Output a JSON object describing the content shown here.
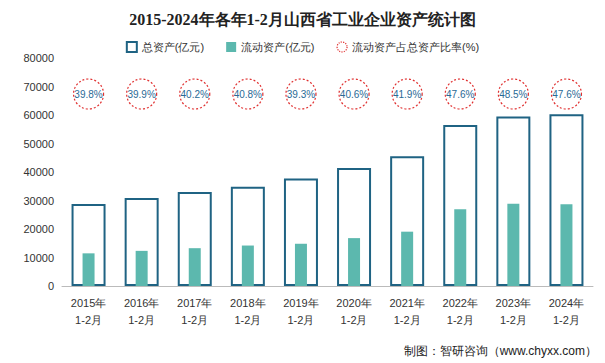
{
  "chart_data": {
    "type": "bar",
    "title": "2015-2024年各年1-2月山西省工业企业资产统计图",
    "source": "制图：智研咨询（www.chyxx.com）",
    "categories": [
      "2015年\n1-2月",
      "2016年\n1-2月",
      "2017年\n1-2月",
      "2018年\n1-2月",
      "2019年\n1-2月",
      "2020年\n1-2月",
      "2021年\n1-2月",
      "2022年\n1-2月",
      "2023年\n1-2月",
      "2024年\n1-2月"
    ],
    "series": [
      {
        "name": "总资产(亿元)",
        "type": "bar",
        "color": "#1f6383",
        "line_style": "hollow",
        "values": [
          28800,
          30900,
          33000,
          34800,
          37700,
          41400,
          45500,
          56500,
          59500,
          60300
        ]
      },
      {
        "name": "流动资产(亿元)",
        "type": "bar",
        "color": "#5cb8ae",
        "values": [
          11460,
          12330,
          13270,
          14200,
          14820,
          16800,
          19060,
          26900,
          28860,
          28700
        ]
      },
      {
        "name": "流动资产占总资产比率(%)",
        "type": "scatter",
        "color": "#e03030",
        "marker": "circle",
        "line_style": "dotted",
        "values": [
          39.8,
          39.9,
          40.2,
          40.8,
          39.3,
          40.6,
          41.9,
          47.6,
          48.5,
          47.6
        ],
        "value_labels": [
          "39.8%",
          "39.9%",
          "40.2%",
          "40.8%",
          "39.3%",
          "40.6%",
          "41.9%",
          "47.6%",
          "48.5%",
          "47.6%"
        ]
      }
    ],
    "ylim": [
      0,
      80000
    ],
    "yticks": [
      0,
      10000,
      20000,
      30000,
      40000,
      50000,
      60000,
      70000,
      80000
    ],
    "grid": false,
    "legend": "top"
  }
}
